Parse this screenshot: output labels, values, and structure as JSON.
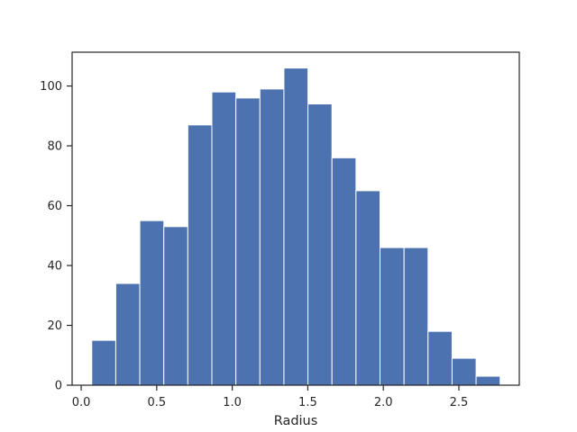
{
  "chart_data": {
    "type": "bar",
    "title": "",
    "xlabel": "Radius",
    "ylabel": "",
    "xlim": [
      -0.06,
      2.9
    ],
    "ylim": [
      0,
      111.3
    ],
    "x_ticks": [
      0.0,
      0.5,
      1.0,
      1.5,
      2.0,
      2.5
    ],
    "x_tick_labels": [
      "0.0",
      "0.5",
      "1.0",
      "1.5",
      "2.0",
      "2.5"
    ],
    "y_ticks": [
      0,
      20,
      40,
      60,
      80,
      100
    ],
    "y_tick_labels": [
      "0",
      "20",
      "40",
      "60",
      "80",
      "100"
    ],
    "grid": false,
    "bar_color": "#4c72b0",
    "bin_edges": [
      0.07,
      0.229,
      0.388,
      0.547,
      0.706,
      0.865,
      1.024,
      1.183,
      1.342,
      1.501,
      1.66,
      1.819,
      1.978,
      2.137,
      2.296,
      2.455,
      2.614,
      2.773
    ],
    "values": [
      15,
      34,
      55,
      53,
      87,
      98,
      96,
      99,
      106,
      94,
      76,
      65,
      46,
      46,
      18,
      9,
      3
    ]
  }
}
